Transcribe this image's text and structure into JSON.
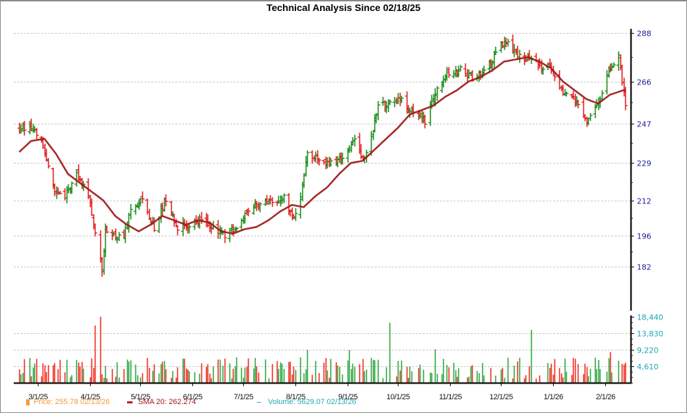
{
  "title": "Technical Analysis Since 02/18/25",
  "legend": {
    "price_label": "Price: 255.78  02/13/26",
    "sma_label": "SMA 20: 262.274",
    "volume_label": "Volume: 5629.07  02/13/26"
  },
  "colors": {
    "up": "#1a8a1a",
    "down": "#e31a1a",
    "sma": "#a01818",
    "volume_up": "#2aa43c",
    "volume_down": "#f0281a",
    "price_axis_text": "#1a1a9c",
    "volume_axis_text": "#1aa6b7",
    "grid": "#c8c8c8"
  },
  "chart_data": {
    "type": "ohlc",
    "title": "Technical Analysis Since 02/18/25",
    "xlabel": "",
    "ylabel": "",
    "x_tick_labels": [
      "3/1/25",
      "4/1/25",
      "5/1/25",
      "6/1/25",
      "7/1/25",
      "8/1/25",
      "9/1/25",
      "10/1/25",
      "11/1/25",
      "12/1/25",
      "1/1/26",
      "2/1/26"
    ],
    "price_axis": {
      "ticks": [
        288,
        266,
        247,
        229,
        212,
        196,
        182
      ],
      "ylim": [
        170,
        291
      ],
      "grid": true
    },
    "volume_axis": {
      "ticks": [
        "18,440",
        "13,830",
        "9,220",
        "4,610"
      ],
      "ylim": [
        0,
        18440
      ],
      "grid": true
    },
    "legend_position": "bottom-left",
    "price_anchors": {
      "description": "Approximate close path (date index -> price) read from chart",
      "points": [
        [
          "02/18/25",
          244
        ],
        [
          "02/25/25",
          246
        ],
        [
          "03/03/25",
          240
        ],
        [
          "03/10/25",
          218
        ],
        [
          "03/17/25",
          214
        ],
        [
          "03/24/25",
          224
        ],
        [
          "03/31/25",
          215
        ],
        [
          "04/04/25",
          198
        ],
        [
          "04/08/25",
          180
        ],
        [
          "04/10/25",
          199
        ],
        [
          "04/21/25",
          195
        ],
        [
          "04/25/25",
          207
        ],
        [
          "05/02/25",
          212
        ],
        [
          "05/09/25",
          200
        ],
        [
          "05/16/25",
          212
        ],
        [
          "05/23/25",
          200
        ],
        [
          "05/30/25",
          201
        ],
        [
          "06/06/25",
          204
        ],
        [
          "06/13/25",
          200
        ],
        [
          "06/20/25",
          196
        ],
        [
          "06/27/25",
          200
        ],
        [
          "07/03/25",
          208
        ],
        [
          "07/11/25",
          211
        ],
        [
          "07/18/25",
          212
        ],
        [
          "07/25/25",
          213
        ],
        [
          "07/31/25",
          203
        ],
        [
          "08/05/25",
          218
        ],
        [
          "08/08/25",
          234
        ],
        [
          "08/15/25",
          230
        ],
        [
          "08/22/25",
          229
        ],
        [
          "08/29/25",
          232
        ],
        [
          "09/05/25",
          240
        ],
        [
          "09/10/25",
          230
        ],
        [
          "09/15/25",
          241
        ],
        [
          "09/19/25",
          255
        ],
        [
          "09/26/25",
          256
        ],
        [
          "10/03/25",
          258
        ],
        [
          "10/10/25",
          251
        ],
        [
          "10/17/25",
          248
        ],
        [
          "10/24/25",
          263
        ],
        [
          "10/31/25",
          270
        ],
        [
          "11/07/25",
          271
        ],
        [
          "11/14/25",
          268
        ],
        [
          "11/21/25",
          270
        ],
        [
          "11/28/25",
          278
        ],
        [
          "12/03/25",
          285
        ],
        [
          "12/10/25",
          279
        ],
        [
          "12/17/25",
          276
        ],
        [
          "12/24/25",
          273
        ],
        [
          "12/31/25",
          272
        ],
        [
          "01/07/26",
          260
        ],
        [
          "01/14/26",
          258
        ],
        [
          "01/21/26",
          248
        ],
        [
          "01/28/26",
          256
        ],
        [
          "02/04/26",
          272
        ],
        [
          "02/09/26",
          278
        ],
        [
          "02/13/26",
          255.78
        ]
      ]
    },
    "sma20": {
      "name": "SMA 20",
      "last_value": 262.274,
      "points": [
        [
          "02/18/25",
          234
        ],
        [
          "02/25/25",
          239
        ],
        [
          "03/05/25",
          240
        ],
        [
          "03/12/25",
          233
        ],
        [
          "03/19/25",
          224
        ],
        [
          "03/26/25",
          220
        ],
        [
          "04/02/25",
          216
        ],
        [
          "04/09/25",
          212
        ],
        [
          "04/16/25",
          205
        ],
        [
          "04/23/25",
          201
        ],
        [
          "04/30/25",
          198
        ],
        [
          "05/07/25",
          201
        ],
        [
          "05/14/25",
          205
        ],
        [
          "05/21/25",
          203
        ],
        [
          "05/28/25",
          201
        ],
        [
          "06/04/25",
          203
        ],
        [
          "06/11/25",
          202
        ],
        [
          "06/18/25",
          198
        ],
        [
          "06/25/25",
          197
        ],
        [
          "07/02/25",
          199
        ],
        [
          "07/09/25",
          200
        ],
        [
          "07/16/25",
          203
        ],
        [
          "07/23/25",
          207
        ],
        [
          "07/30/25",
          210
        ],
        [
          "08/06/25",
          209
        ],
        [
          "08/13/25",
          214
        ],
        [
          "08/20/25",
          218
        ],
        [
          "08/27/25",
          224
        ],
        [
          "09/03/25",
          229
        ],
        [
          "09/10/25",
          230
        ],
        [
          "09/17/25",
          235
        ],
        [
          "09/24/25",
          240
        ],
        [
          "10/01/25",
          245
        ],
        [
          "10/08/25",
          251
        ],
        [
          "10/15/25",
          253
        ],
        [
          "10/22/25",
          255
        ],
        [
          "10/29/25",
          259
        ],
        [
          "11/05/25",
          262
        ],
        [
          "11/12/25",
          266
        ],
        [
          "11/19/25",
          268
        ],
        [
          "11/26/25",
          271
        ],
        [
          "12/03/25",
          275
        ],
        [
          "12/10/25",
          276
        ],
        [
          "12/17/25",
          277
        ],
        [
          "12/24/25",
          275
        ],
        [
          "12/31/25",
          272
        ],
        [
          "01/07/26",
          266
        ],
        [
          "01/14/26",
          262
        ],
        [
          "01/21/26",
          258
        ],
        [
          "01/28/26",
          256
        ],
        [
          "02/04/26",
          260
        ],
        [
          "02/13/26",
          262.274
        ]
      ]
    },
    "volume": {
      "last_value": 5629.07,
      "notable_spikes": [
        [
          "04/07/25",
          18440
        ],
        [
          "04/04/25",
          16000
        ],
        [
          "09/26/25",
          16800
        ],
        [
          "12/19/25",
          14800
        ],
        [
          "02/04/26",
          8600
        ]
      ],
      "typical_range": [
        1500,
        7500
      ]
    },
    "last": {
      "date": "02/13/26",
      "price": 255.78
    }
  }
}
